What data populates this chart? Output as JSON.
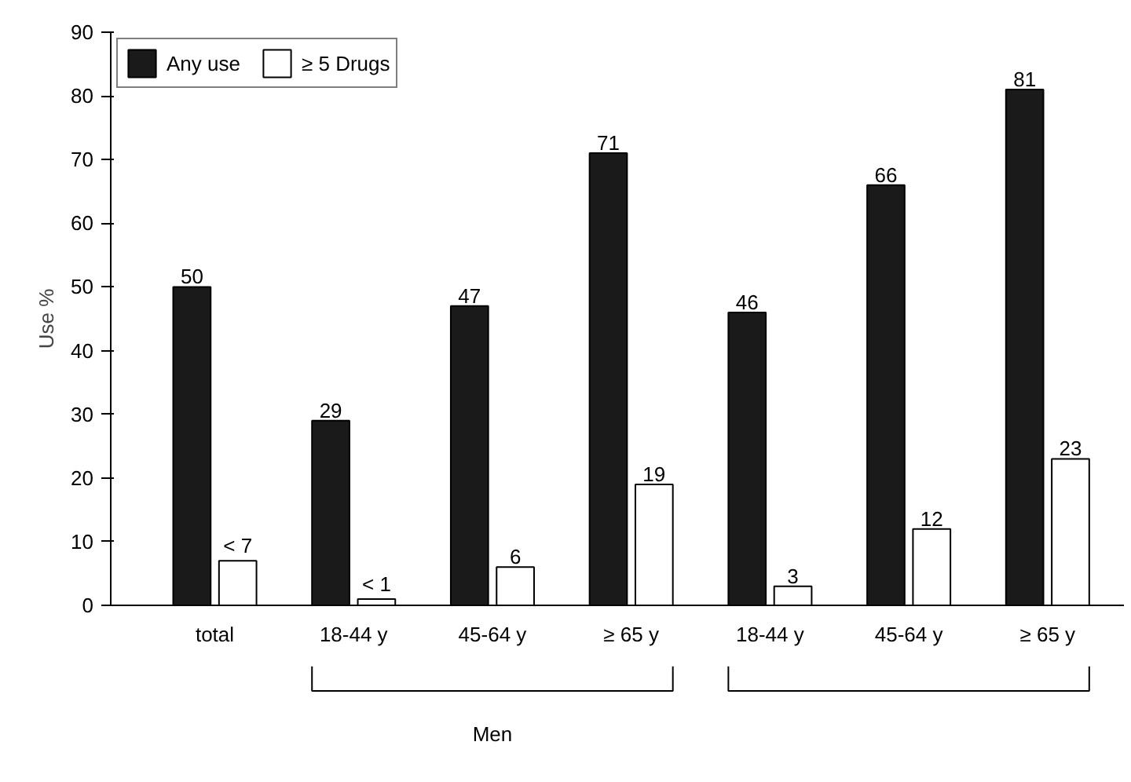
{
  "chart_data": {
    "type": "bar",
    "ylabel": "Use %",
    "categories": [
      "total",
      "18-44 y",
      "45-64 y",
      "≥ 65 y",
      "18-44 y",
      "45-64 y",
      "≥ 65 y"
    ],
    "series": [
      {
        "name": "Any use",
        "color": "#1a1a1a",
        "values": [
          50,
          29,
          47,
          71,
          46,
          66,
          81
        ],
        "value_labels": [
          "50",
          "29",
          "47",
          "71",
          "46",
          "66",
          "81"
        ]
      },
      {
        "name": "≥ 5 Drugs",
        "color": "#ffffff",
        "values": [
          7,
          1,
          6,
          19,
          3,
          12,
          23
        ],
        "value_labels": [
          "< 7",
          "< 1",
          "6",
          "19",
          "3",
          "12",
          "23"
        ]
      }
    ],
    "ylim": [
      0,
      90
    ],
    "yticks": [
      0,
      10,
      20,
      30,
      40,
      50,
      60,
      70,
      80,
      90
    ],
    "grid": false,
    "legend": "top left",
    "annotations": [
      "Men"
    ]
  }
}
